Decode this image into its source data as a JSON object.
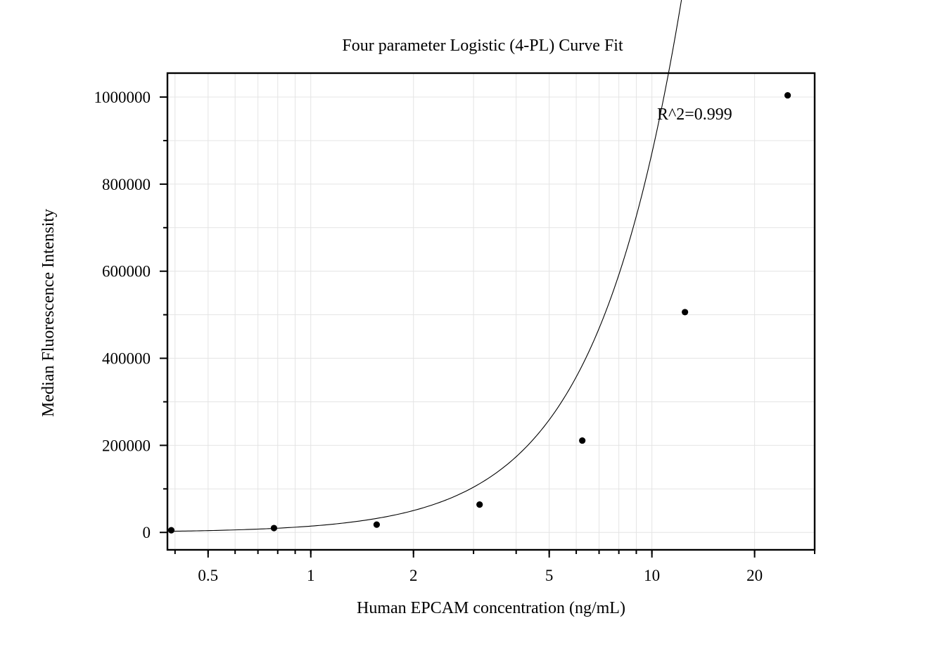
{
  "chart_data": {
    "type": "scatter",
    "title": "Four parameter Logistic (4-PL) Curve Fit",
    "xlabel": "Human EPCAM concentration (ng/mL)",
    "ylabel": "Median Fluorescence Intensity",
    "x_scale": "log",
    "xlim": [
      0.38,
      30
    ],
    "ylim": [
      -40000,
      1055000
    ],
    "x_ticks": [
      0.5,
      1,
      2,
      5,
      10,
      20
    ],
    "x_tick_labels": [
      "0.5",
      "1",
      "2",
      "5",
      "10",
      "20"
    ],
    "y_ticks": [
      0,
      200000,
      400000,
      600000,
      800000,
      1000000
    ],
    "y_tick_labels": [
      "0",
      "200000",
      "400000",
      "600000",
      "800000",
      "1000000"
    ],
    "grid": true,
    "annotation": "R^2=0.999",
    "points": {
      "x": [
        0.39,
        0.78,
        1.56,
        3.125,
        6.25,
        12.5,
        25
      ],
      "y": [
        5000,
        10000,
        18000,
        64000,
        211000,
        506000,
        1004000
      ]
    },
    "fit": {
      "model": "4-PL",
      "A": 0,
      "B": 1.8,
      "C": 54,
      "D": 19000000
    }
  }
}
